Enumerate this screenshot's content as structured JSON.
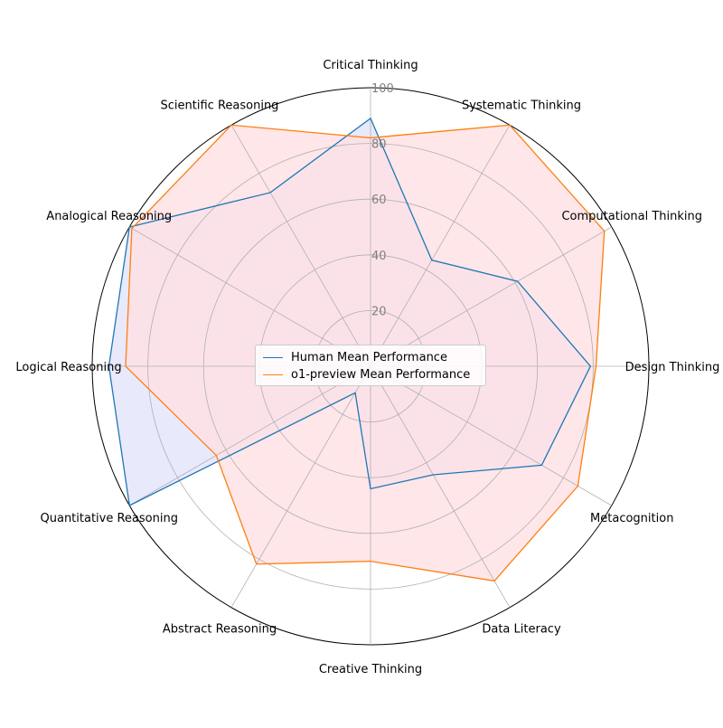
{
  "chart_data": {
    "type": "radar",
    "title": "",
    "categories": [
      "Critical Thinking",
      "Systematic Thinking",
      "Computational Thinking",
      "Design Thinking",
      "Metacognition",
      "Data Literacy",
      "Creative Thinking",
      "Abstract Reasoning",
      "Quantitative Reasoning",
      "Logical Reasoning",
      "Analogical Reasoning",
      "Scientific Reasoning"
    ],
    "rlim": [
      0,
      100
    ],
    "rticks": [
      20,
      40,
      60,
      80,
      100
    ],
    "grid": true,
    "legend": "center",
    "series": [
      {
        "name": "Human Mean Performance",
        "color": "#1f77b4",
        "fill": "#e3e3fb",
        "values": [
          89,
          44,
          61,
          79,
          71,
          45,
          44,
          11,
          100,
          94,
          100,
          72
        ]
      },
      {
        "name": "o1-preview Mean Performance",
        "color": "#ff7f0e",
        "fill": "#ffe0e3",
        "values": [
          82,
          100,
          97,
          81,
          86,
          89,
          70,
          82,
          64,
          88,
          99,
          100
        ]
      }
    ]
  }
}
